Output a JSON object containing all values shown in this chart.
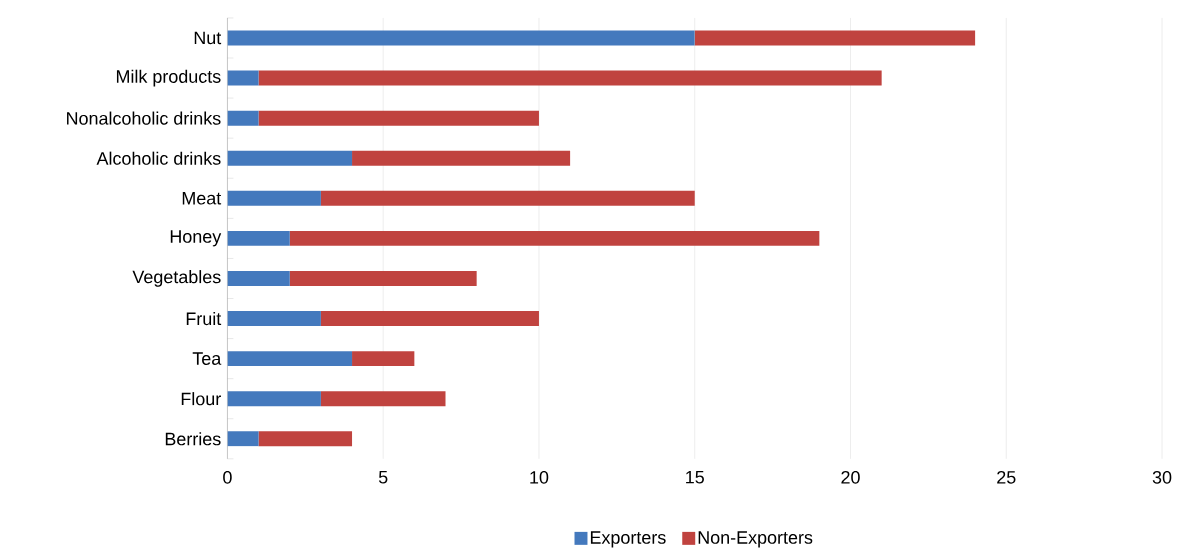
{
  "chart_data": {
    "type": "bar",
    "orientation": "horizontal",
    "stacked": true,
    "categories": [
      "Nut",
      "Milk products",
      "Nonalcoholic drinks",
      "Alcoholic drinks",
      "Meat",
      "Honey",
      "Vegetables",
      "Fruit",
      "Tea",
      "Flour",
      "Berries"
    ],
    "series": [
      {
        "name": "Exporters",
        "color": "#4479bd",
        "values": [
          15,
          1,
          1,
          4,
          3,
          2,
          2,
          3,
          4,
          3,
          1
        ]
      },
      {
        "name": "Non-Exporters",
        "color": "#c0433f",
        "values": [
          9,
          20,
          9,
          7,
          12,
          17,
          6,
          7,
          2,
          4,
          3
        ]
      }
    ],
    "xlim": [
      0,
      30
    ],
    "xticks": [
      0,
      5,
      10,
      15,
      20,
      25,
      30
    ],
    "grid": "x",
    "legend": "bottom"
  }
}
